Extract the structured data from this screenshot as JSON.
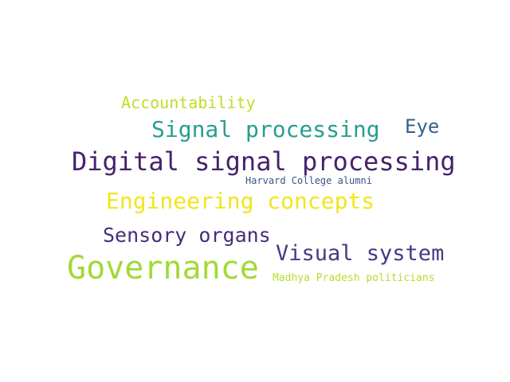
{
  "words": [
    {
      "text": "Accountability",
      "color": "#bddf26"
    },
    {
      "text": "Signal processing",
      "color": "#2a9d8f"
    },
    {
      "text": "Eye",
      "color": "#35608d"
    },
    {
      "text": "Digital signal processing",
      "color": "#46216b"
    },
    {
      "text": "Harvard College alumni",
      "color": "#3b528b"
    },
    {
      "text": "Engineering concepts",
      "color": "#f1e51d"
    },
    {
      "text": "Sensory organs",
      "color": "#472d7b"
    },
    {
      "text": "Visual system",
      "color": "#443a83"
    },
    {
      "text": "Governance",
      "color": "#a2da37"
    },
    {
      "text": "Madhya Pradesh politicians",
      "color": "#b5de2b"
    }
  ]
}
